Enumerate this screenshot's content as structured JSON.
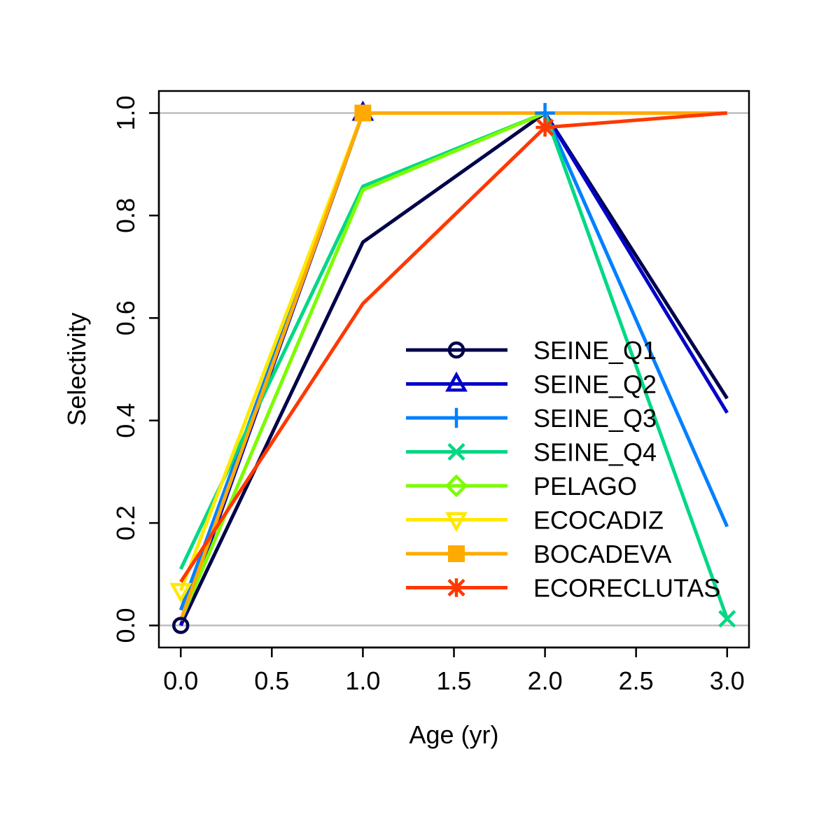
{
  "chart_data": {
    "type": "line",
    "xlabel": "Age (yr)",
    "ylabel": "Selectivity",
    "xlim": [
      -0.12,
      3.12
    ],
    "ylim": [
      -0.043,
      1.043
    ],
    "xticks": [
      0.0,
      0.5,
      1.0,
      1.5,
      2.0,
      2.5,
      3.0
    ],
    "xtick_labels": [
      "0.0",
      "0.5",
      "1.0",
      "1.5",
      "2.0",
      "2.5",
      "3.0"
    ],
    "yticks": [
      0.0,
      0.2,
      0.4,
      0.6,
      0.8,
      1.0
    ],
    "ytick_labels": [
      "0.0",
      "0.2",
      "0.4",
      "0.6",
      "0.8",
      "1.0"
    ],
    "reference_lines": [
      0,
      1
    ],
    "reference_line_color": "#bebebe",
    "legend_position": "bottom-right",
    "x": [
      0,
      1,
      2,
      3
    ],
    "series": [
      {
        "name": "SEINE_Q1",
        "color": "#00004a",
        "marker": "circle",
        "values": [
          0.0,
          0.748,
          1.0,
          0.443
        ]
      },
      {
        "name": "SEINE_Q2",
        "color": "#0000c8",
        "marker": "triangle",
        "values": [
          0.0,
          1.0,
          1.0,
          0.415
        ]
      },
      {
        "name": "SEINE_Q3",
        "color": "#0080ff",
        "marker": "plus",
        "values": [
          0.03,
          1.0,
          1.0,
          0.193
        ]
      },
      {
        "name": "SEINE_Q4",
        "color": "#00d884",
        "marker": "cross",
        "values": [
          0.11,
          0.857,
          1.0,
          0.013
        ]
      },
      {
        "name": "PELAGO",
        "color": "#7cfc00",
        "marker": "diamond",
        "values": [
          0.01,
          0.85,
          1.0,
          1.0
        ]
      },
      {
        "name": "ECOCADIZ",
        "color": "#ffe800",
        "marker": "triangle-down",
        "values": [
          0.068,
          1.0,
          1.0,
          1.0
        ]
      },
      {
        "name": "BOCADEVA",
        "color": "#ffaa00",
        "marker": "square",
        "values": [
          0.01,
          1.0,
          1.0,
          1.0
        ]
      },
      {
        "name": "ECORECLUTAS",
        "color": "#ff3800",
        "marker": "asterisk",
        "values": [
          0.085,
          0.628,
          0.972,
          1.0
        ]
      }
    ]
  }
}
